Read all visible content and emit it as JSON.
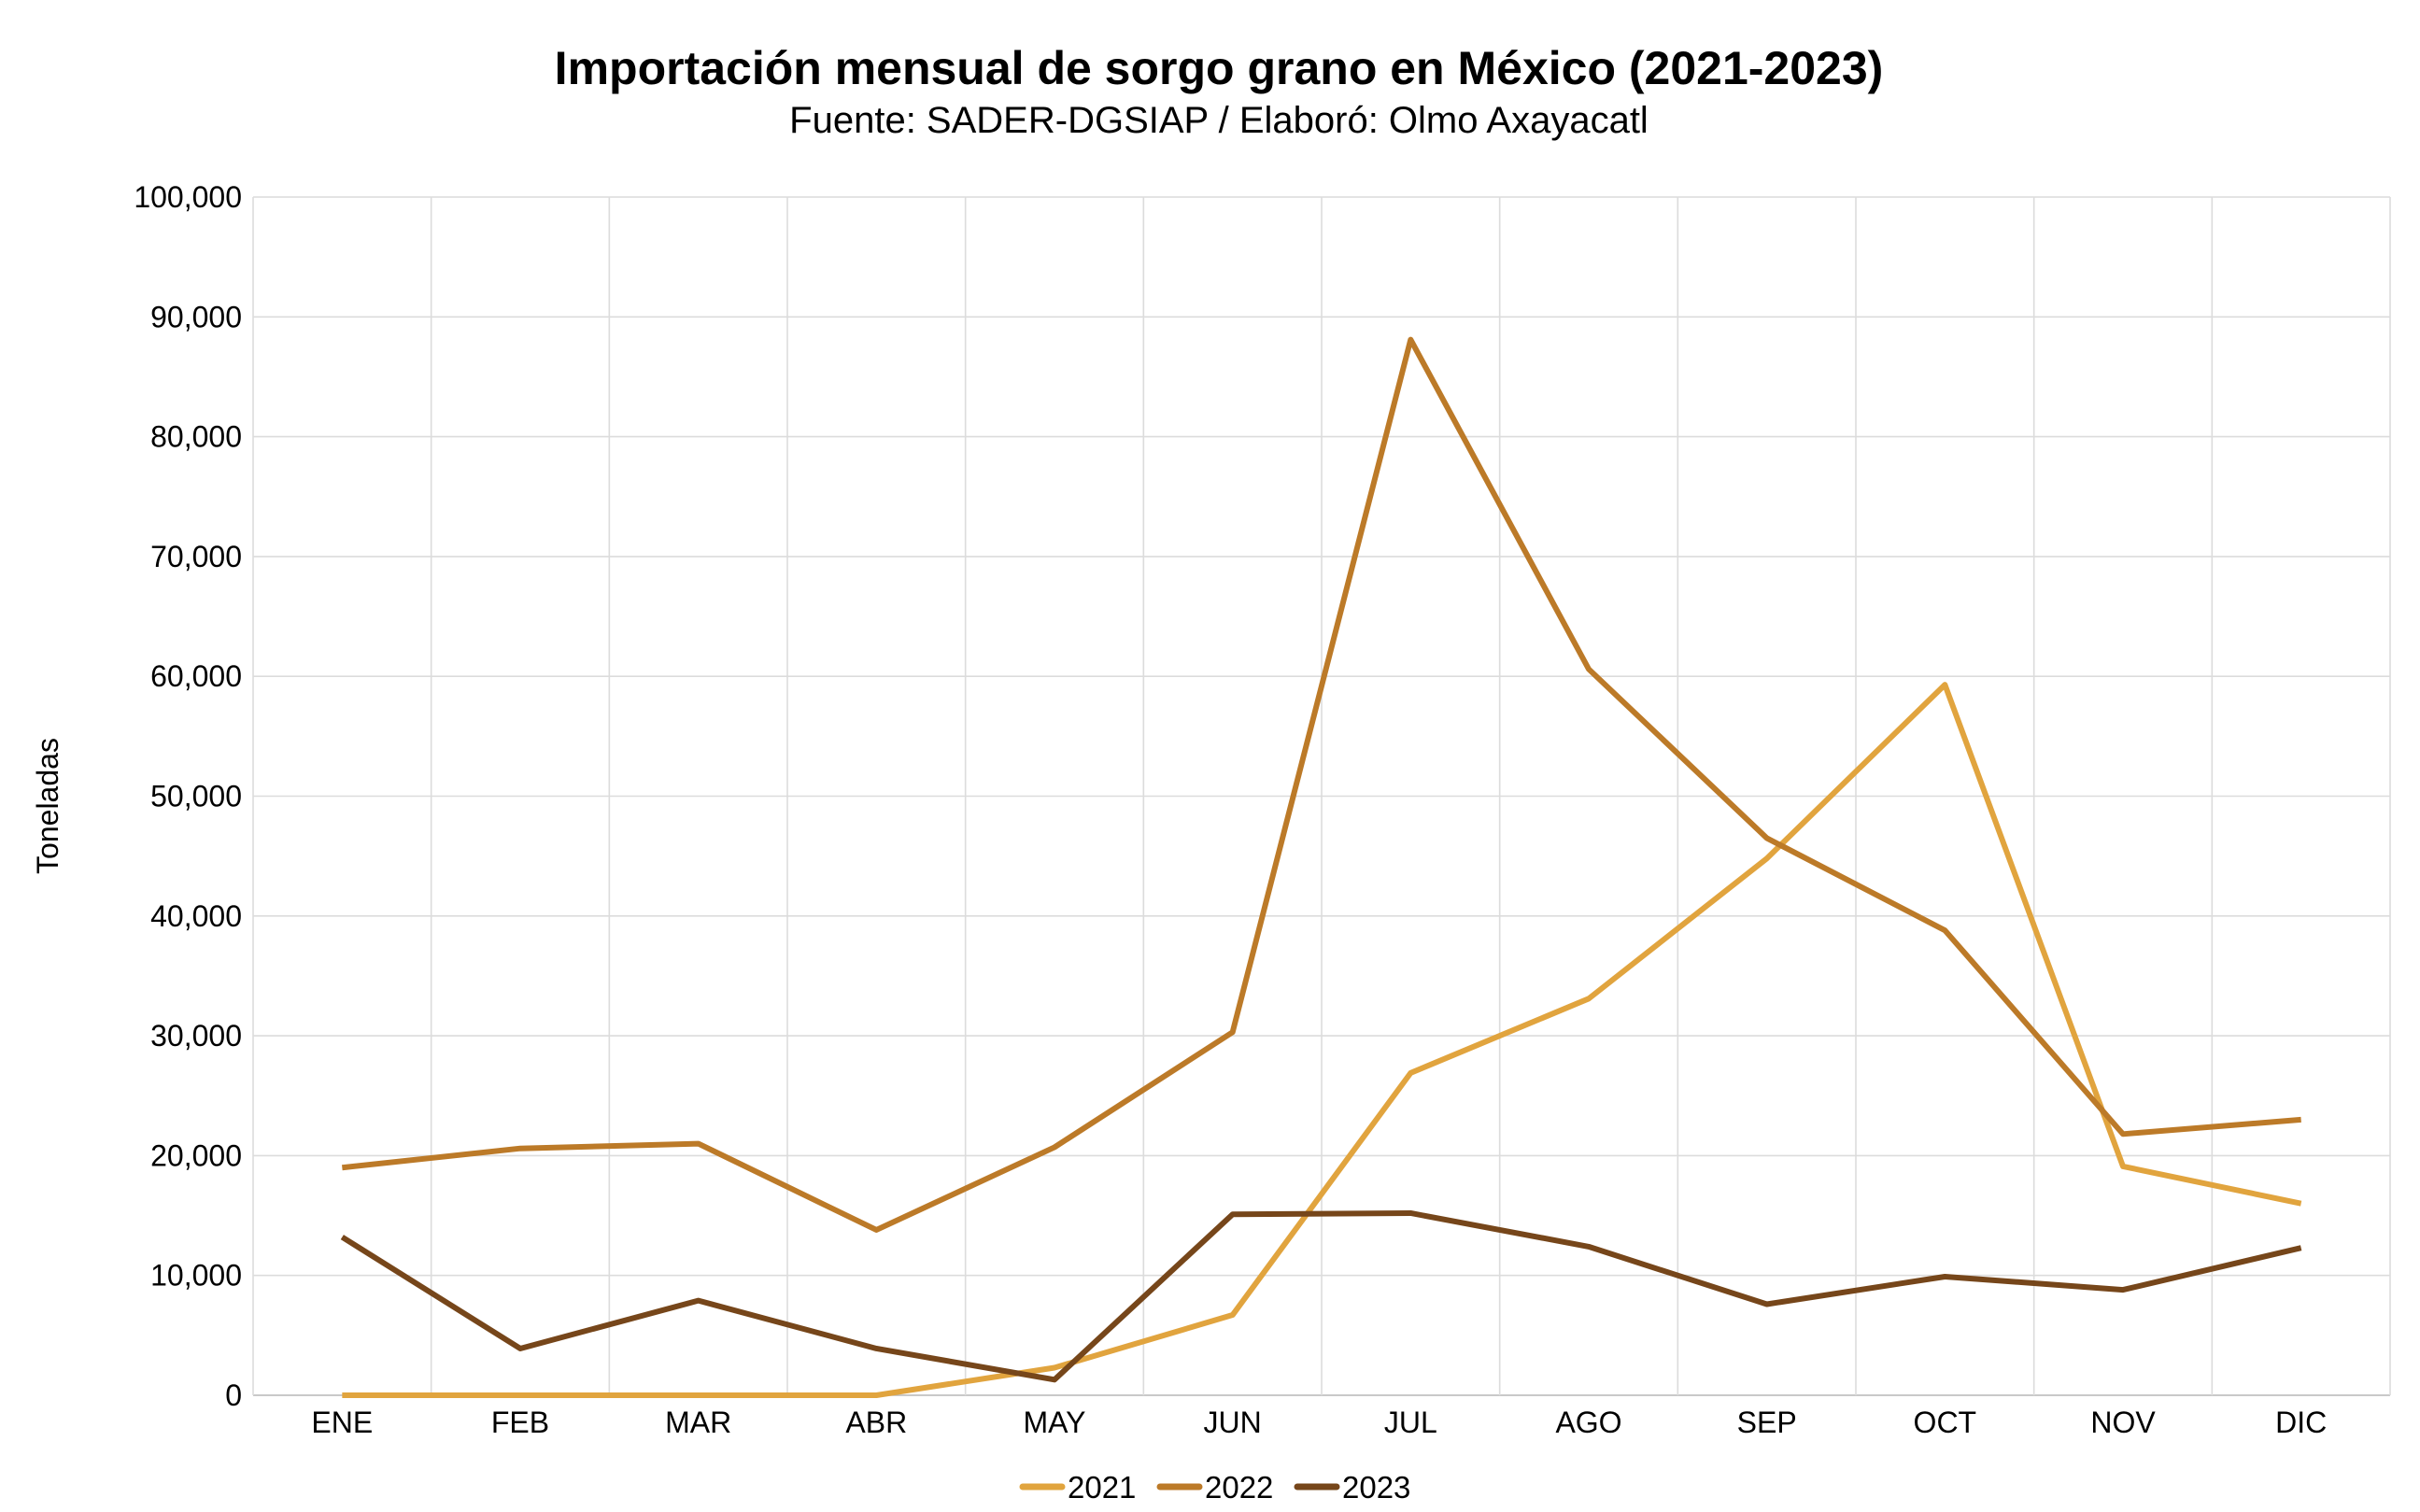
{
  "chart_data": {
    "type": "line",
    "title": "Importación mensual de sorgo grano en México (2021-2023)",
    "subtitle": "Fuente: SADER-DGSIAP / Elaboró: Olmo Axayacatl",
    "xlabel": "",
    "ylabel": "Toneladas",
    "ylim": [
      0,
      100000
    ],
    "yticks": [
      0,
      10000,
      20000,
      30000,
      40000,
      50000,
      60000,
      70000,
      80000,
      90000,
      100000
    ],
    "grid": true,
    "legend_position": "bottom",
    "categories": [
      "ENE",
      "FEB",
      "MAR",
      "ABR",
      "MAY",
      "JUN",
      "JUL",
      "AGO",
      "SEP",
      "OCT",
      "NOV",
      "DIC"
    ],
    "series": [
      {
        "name": "2021",
        "color": "#E1A43E",
        "values": [
          0,
          0,
          0,
          0,
          2300,
          6700,
          26900,
          33100,
          44800,
          59300,
          19100,
          16000
        ]
      },
      {
        "name": "2022",
        "color": "#BC7A28",
        "values": [
          19000,
          20600,
          21000,
          13800,
          20700,
          30300,
          88100,
          60600,
          46500,
          38800,
          21800,
          23000
        ]
      },
      {
        "name": "2023",
        "color": "#76461A",
        "values": [
          13200,
          3900,
          7900,
          3900,
          1300,
          15100,
          15200,
          12400,
          7600,
          9900,
          8800,
          12300
        ]
      }
    ]
  }
}
